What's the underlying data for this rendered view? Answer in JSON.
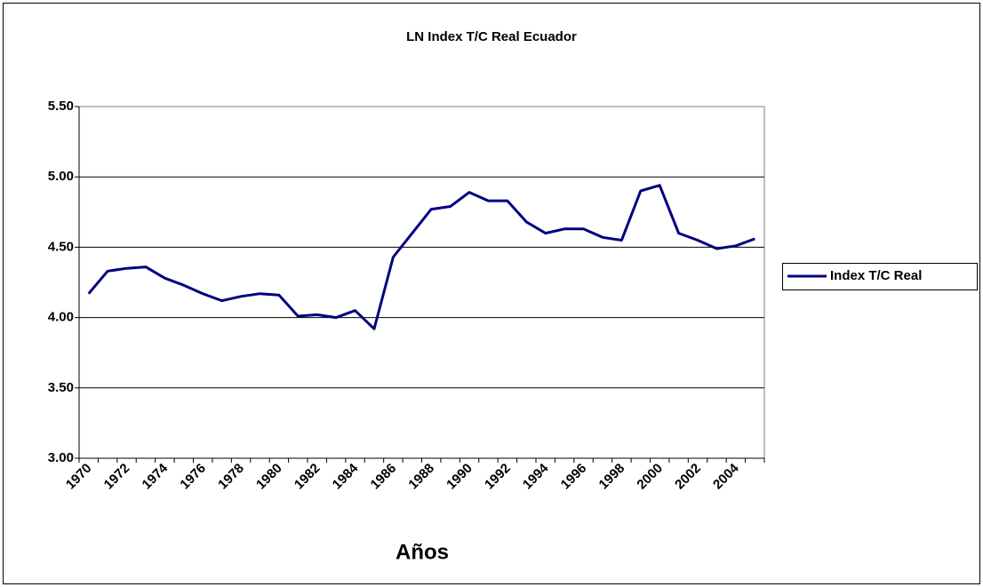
{
  "chart_data": {
    "type": "line",
    "title": "LN Index T/C Real Ecuador",
    "x_label": "Años",
    "categories": [
      "1970",
      null,
      "1972",
      null,
      "1974",
      null,
      "1976",
      null,
      "1978",
      null,
      "1980",
      null,
      "1982",
      null,
      "1984",
      null,
      "1986",
      null,
      "1988",
      null,
      "1990",
      null,
      "1992",
      null,
      "1994",
      null,
      "1996",
      null,
      "1998",
      null,
      "2000",
      null,
      "2002",
      null,
      "2004",
      null
    ],
    "series": [
      {
        "name": "Index T/C Real",
        "color": "#000080",
        "values": [
          4.17,
          4.33,
          4.35,
          4.36,
          4.28,
          4.23,
          4.17,
          4.12,
          4.15,
          4.17,
          4.16,
          4.01,
          4.02,
          4.0,
          4.05,
          3.92,
          4.43,
          4.6,
          4.77,
          4.79,
          4.89,
          4.83,
          4.83,
          4.68,
          4.6,
          4.63,
          4.63,
          4.57,
          4.55,
          4.9,
          4.94,
          4.6,
          4.55,
          4.49,
          4.51,
          4.56
        ]
      }
    ],
    "ylim": [
      3.0,
      5.5
    ],
    "yticks": [
      {
        "value": 3.0,
        "label": "3.00"
      },
      {
        "value": 3.5,
        "label": "3.50"
      },
      {
        "value": 4.0,
        "label": "4.00"
      },
      {
        "value": 4.5,
        "label": "4.50"
      },
      {
        "value": 5.0,
        "label": "5.00"
      },
      {
        "value": 5.5,
        "label": "5.50"
      }
    ],
    "grid": true,
    "legend": "right"
  }
}
